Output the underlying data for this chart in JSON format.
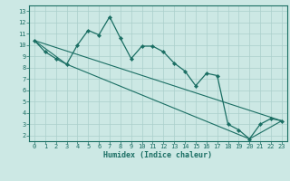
{
  "xlabel": "Humidex (Indice chaleur)",
  "bg_color": "#cce8e4",
  "grid_color": "#aacfcb",
  "line_color": "#1a6e63",
  "spine_color": "#1a6e63",
  "xlim": [
    -0.5,
    23.5
  ],
  "ylim": [
    1.5,
    13.5
  ],
  "xticks": [
    0,
    1,
    2,
    3,
    4,
    5,
    6,
    7,
    8,
    9,
    10,
    11,
    12,
    13,
    14,
    15,
    16,
    17,
    18,
    19,
    20,
    21,
    22,
    23
  ],
  "yticks": [
    2,
    3,
    4,
    5,
    6,
    7,
    8,
    9,
    10,
    11,
    12,
    13
  ],
  "line1_x": [
    0,
    1,
    2,
    3,
    4,
    5,
    6,
    7,
    8,
    9,
    10,
    11,
    12,
    13,
    14,
    15,
    16,
    17,
    18,
    19,
    20,
    21,
    22,
    23
  ],
  "line1_y": [
    10.4,
    9.4,
    8.8,
    8.3,
    10.0,
    11.3,
    10.9,
    12.5,
    10.6,
    8.8,
    9.9,
    9.9,
    9.4,
    8.4,
    7.7,
    6.4,
    7.5,
    7.3,
    3.0,
    2.5,
    1.7,
    3.0,
    3.5,
    3.3
  ],
  "line2_x": [
    0,
    23
  ],
  "line2_y": [
    10.4,
    3.3
  ],
  "line3_x": [
    0,
    3,
    20,
    23
  ],
  "line3_y": [
    10.4,
    8.3,
    1.7,
    3.3
  ],
  "tick_fontsize": 5.0,
  "xlabel_fontsize": 6.0,
  "marker_size": 2.2
}
